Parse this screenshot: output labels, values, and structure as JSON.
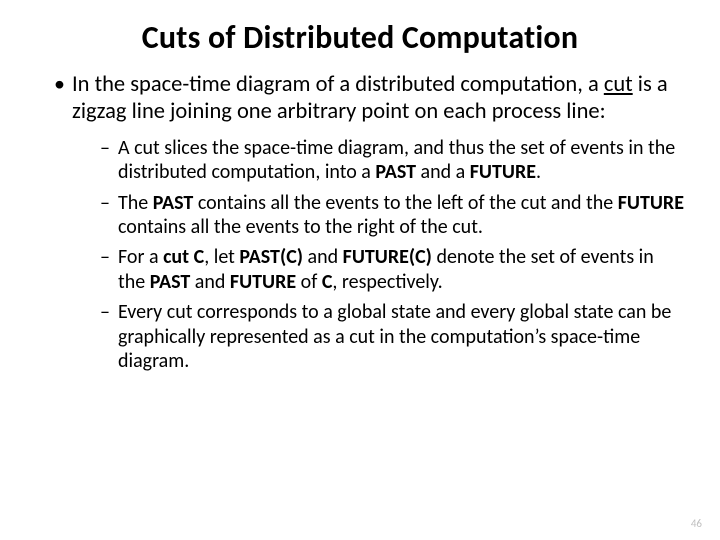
{
  "title": "Cuts of Distributed Computation",
  "bullet1_pre": "In the space-time diagram of a distributed computation, a ",
  "bullet1_cut": "cut",
  "bullet1_post": " is a zigzag line joining one arbitrary point on each process line:",
  "sub1_a": "A cut slices the space-time diagram, and thus the set of events in the distributed computation, into a ",
  "sub1_past": "PAST",
  "sub1_b": " and a ",
  "sub1_future": "FUTURE",
  "sub1_c": ".",
  "sub2_a": "The ",
  "sub2_past": "PAST",
  "sub2_b": " contains all the events to the left of the cut and the ",
  "sub2_future": "FUTURE",
  "sub2_c": " contains all the events to the right of the cut.",
  "sub3_a": "For a ",
  "sub3_cutC": "cut C",
  "sub3_b": ", let ",
  "sub3_pastc": "PAST(C)",
  "sub3_c": " and ",
  "sub3_futurec": "FUTURE(C)",
  "sub3_d": " denote the set of events in the ",
  "sub3_past": "PAST",
  "sub3_e": " and ",
  "sub3_future": "FUTURE",
  "sub3_f": " of ",
  "sub3_Cbold": "C",
  "sub3_g": ", respectively.",
  "sub4": "Every cut corresponds to a global state and every global state can be graphically represented as a cut in the computation’s space-time diagram.",
  "pagenum": "46"
}
